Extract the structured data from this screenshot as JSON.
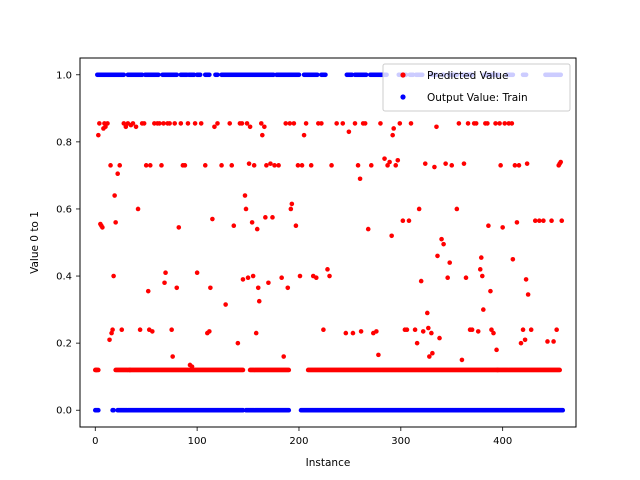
{
  "chart_data": {
    "type": "scatter",
    "title": "",
    "xlabel": "Instance",
    "ylabel": "Value 0 to 1",
    "xlim": [
      -15,
      472
    ],
    "ylim": [
      -0.05,
      1.05
    ],
    "xticks": [
      "0",
      "100",
      "200",
      "300",
      "400"
    ],
    "yticks": [
      "0.0",
      "0.2",
      "0.4",
      "0.6",
      "0.8",
      "1.0"
    ],
    "grid": false,
    "legend_position": "top-right",
    "series": [
      {
        "name": "Predicted Value",
        "color": "#ff0000",
        "points": [
          [
            1,
            0.12
          ],
          [
            3,
            0.82
          ],
          [
            4,
            0.855
          ],
          [
            5,
            0.555
          ],
          [
            6,
            0.55
          ],
          [
            7,
            0.545
          ],
          [
            8,
            0.84
          ],
          [
            9,
            0.855
          ],
          [
            10,
            0.845
          ],
          [
            12,
            0.855
          ],
          [
            14,
            0.21
          ],
          [
            15,
            0.73
          ],
          [
            16,
            0.23
          ],
          [
            17,
            0.24
          ],
          [
            18,
            0.4
          ],
          [
            19,
            0.64
          ],
          [
            20,
            0.56
          ],
          [
            22,
            0.705
          ],
          [
            24,
            0.73
          ],
          [
            26,
            0.24
          ],
          [
            28,
            0.855
          ],
          [
            30,
            0.845
          ],
          [
            32,
            0.855
          ],
          [
            34,
            0.12
          ],
          [
            35,
            0.85
          ],
          [
            37,
            0.855
          ],
          [
            40,
            0.845
          ],
          [
            42,
            0.6
          ],
          [
            44,
            0.24
          ],
          [
            46,
            0.855
          ],
          [
            48,
            0.855
          ],
          [
            50,
            0.73
          ],
          [
            52,
            0.355
          ],
          [
            53,
            0.24
          ],
          [
            54,
            0.73
          ],
          [
            56,
            0.235
          ],
          [
            58,
            0.855
          ],
          [
            61,
            0.855
          ],
          [
            63,
            0.855
          ],
          [
            65,
            0.73
          ],
          [
            67,
            0.855
          ],
          [
            68,
            0.38
          ],
          [
            69,
            0.41
          ],
          [
            71,
            0.855
          ],
          [
            73,
            0.855
          ],
          [
            75,
            0.24
          ],
          [
            76,
            0.16
          ],
          [
            78,
            0.855
          ],
          [
            80,
            0.365
          ],
          [
            82,
            0.545
          ],
          [
            84,
            0.855
          ],
          [
            86,
            0.73
          ],
          [
            88,
            0.73
          ],
          [
            91,
            0.855
          ],
          [
            93,
            0.135
          ],
          [
            95,
            0.13
          ],
          [
            98,
            0.855
          ],
          [
            100,
            0.41
          ],
          [
            104,
            0.855
          ],
          [
            108,
            0.73
          ],
          [
            110,
            0.23
          ],
          [
            112,
            0.235
          ],
          [
            113,
            0.365
          ],
          [
            115,
            0.57
          ],
          [
            117,
            0.845
          ],
          [
            120,
            0.855
          ],
          [
            124,
            0.73
          ],
          [
            128,
            0.315
          ],
          [
            132,
            0.855
          ],
          [
            134,
            0.73
          ],
          [
            136,
            0.55
          ],
          [
            140,
            0.2
          ],
          [
            142,
            0.855
          ],
          [
            144,
            0.855
          ],
          [
            145,
            0.39
          ],
          [
            147,
            0.64
          ],
          [
            148,
            0.6
          ],
          [
            149,
            0.855
          ],
          [
            150,
            0.395
          ],
          [
            151,
            0.735
          ],
          [
            152,
            0.845
          ],
          [
            154,
            0.56
          ],
          [
            155,
            0.4
          ],
          [
            156,
            0.73
          ],
          [
            158,
            0.23
          ],
          [
            159,
            0.54
          ],
          [
            160,
            0.365
          ],
          [
            161,
            0.325
          ],
          [
            163,
            0.855
          ],
          [
            164,
            0.82
          ],
          [
            166,
            0.845
          ],
          [
            167,
            0.575
          ],
          [
            168,
            0.73
          ],
          [
            170,
            0.38
          ],
          [
            172,
            0.735
          ],
          [
            174,
            0.575
          ],
          [
            176,
            0.73
          ],
          [
            180,
            0.73
          ],
          [
            183,
            0.395
          ],
          [
            185,
            0.16
          ],
          [
            187,
            0.855
          ],
          [
            189,
            0.365
          ],
          [
            191,
            0.855
          ],
          [
            192,
            0.6
          ],
          [
            193,
            0.615
          ],
          [
            195,
            0.855
          ],
          [
            197,
            0.55
          ],
          [
            199,
            0.73
          ],
          [
            201,
            0.4
          ],
          [
            203,
            0.73
          ],
          [
            205,
            0.82
          ],
          [
            207,
            0.855
          ],
          [
            212,
            0.73
          ],
          [
            214,
            0.4
          ],
          [
            217,
            0.395
          ],
          [
            219,
            0.855
          ],
          [
            222,
            0.855
          ],
          [
            224,
            0.24
          ],
          [
            228,
            0.42
          ],
          [
            230,
            0.4
          ],
          [
            232,
            0.73
          ],
          [
            237,
            0.855
          ],
          [
            243,
            0.855
          ],
          [
            246,
            0.23
          ],
          [
            249,
            0.83
          ],
          [
            253,
            0.23
          ],
          [
            255,
            0.855
          ],
          [
            258,
            0.73
          ],
          [
            260,
            0.69
          ],
          [
            261,
            0.235
          ],
          [
            263,
            0.855
          ],
          [
            265,
            0.855
          ],
          [
            268,
            0.54
          ],
          [
            271,
            0.73
          ],
          [
            273,
            0.23
          ],
          [
            276,
            0.235
          ],
          [
            278,
            0.165
          ],
          [
            280,
            0.855
          ],
          [
            284,
            0.75
          ],
          [
            287,
            0.73
          ],
          [
            289,
            0.74
          ],
          [
            291,
            0.52
          ],
          [
            292,
            0.82
          ],
          [
            293,
            0.84
          ],
          [
            295,
            0.73
          ],
          [
            297,
            0.745
          ],
          [
            299,
            0.855
          ],
          [
            302,
            0.565
          ],
          [
            304,
            0.24
          ],
          [
            306,
            0.24
          ],
          [
            308,
            0.565
          ],
          [
            310,
            0.855
          ],
          [
            314,
            0.24
          ],
          [
            316,
            0.2
          ],
          [
            318,
            0.6
          ],
          [
            320,
            0.385
          ],
          [
            322,
            0.235
          ],
          [
            324,
            0.735
          ],
          [
            326,
            0.29
          ],
          [
            327,
            0.245
          ],
          [
            328,
            0.16
          ],
          [
            330,
            0.23
          ],
          [
            331,
            0.17
          ],
          [
            333,
            0.725
          ],
          [
            335,
            0.845
          ],
          [
            336,
            0.46
          ],
          [
            338,
            0.215
          ],
          [
            340,
            0.51
          ],
          [
            342,
            0.495
          ],
          [
            344,
            0.735
          ],
          [
            346,
            0.395
          ],
          [
            348,
            0.44
          ],
          [
            350,
            0.73
          ],
          [
            355,
            0.6
          ],
          [
            357,
            0.855
          ],
          [
            360,
            0.15
          ],
          [
            362,
            0.735
          ],
          [
            364,
            0.395
          ],
          [
            366,
            0.855
          ],
          [
            368,
            0.24
          ],
          [
            370,
            0.24
          ],
          [
            372,
            0.855
          ],
          [
            374,
            0.855
          ],
          [
            376,
            0.235
          ],
          [
            378,
            0.42
          ],
          [
            379,
            0.455
          ],
          [
            380,
            0.4
          ],
          [
            381,
            0.3
          ],
          [
            383,
            0.855
          ],
          [
            385,
            0.855
          ],
          [
            386,
            0.55
          ],
          [
            388,
            0.355
          ],
          [
            389,
            0.24
          ],
          [
            391,
            0.23
          ],
          [
            393,
            0.855
          ],
          [
            394,
            0.18
          ],
          [
            395,
            0.12
          ],
          [
            397,
            0.855
          ],
          [
            398,
            0.73
          ],
          [
            400,
            0.545
          ],
          [
            402,
            0.855
          ],
          [
            406,
            0.855
          ],
          [
            409,
            0.855
          ],
          [
            410,
            0.45
          ],
          [
            412,
            0.73
          ],
          [
            414,
            0.56
          ],
          [
            416,
            0.73
          ],
          [
            418,
            0.2
          ],
          [
            420,
            0.24
          ],
          [
            422,
            0.21
          ],
          [
            423,
            0.39
          ],
          [
            424,
            0.735
          ],
          [
            425,
            0.345
          ],
          [
            428,
            0.24
          ],
          [
            432,
            0.565
          ],
          [
            436,
            0.565
          ],
          [
            440,
            0.565
          ],
          [
            444,
            0.205
          ],
          [
            448,
            0.565
          ],
          [
            450,
            0.205
          ],
          [
            453,
            0.24
          ],
          [
            455,
            0.73
          ],
          [
            456,
            0.735
          ],
          [
            457,
            0.74
          ],
          [
            458,
            0.565
          ]
        ],
        "baseline_value": 0.12,
        "baseline_segments": [
          [
            0,
            3
          ],
          [
            20,
            145
          ],
          [
            152,
            190
          ],
          [
            209,
            456
          ]
        ]
      },
      {
        "name": "Output Value: Train",
        "color": "#0000ff",
        "value_high": 1.0,
        "value_low": 0.0,
        "high_segments": [
          [
            2,
            28
          ],
          [
            32,
            46
          ],
          [
            49,
            62
          ],
          [
            66,
            80
          ],
          [
            84,
            90
          ],
          [
            92,
            97
          ],
          [
            100,
            103
          ],
          [
            108,
            112
          ],
          [
            118,
            120
          ],
          [
            124,
            175
          ],
          [
            178,
            200
          ],
          [
            205,
            218
          ],
          [
            222,
            226
          ],
          [
            247,
            252
          ],
          [
            255,
            266
          ],
          [
            270,
            286
          ],
          [
            298,
            305
          ],
          [
            309,
            312
          ],
          [
            315,
            321
          ],
          [
            330,
            335
          ],
          [
            341,
            342
          ],
          [
            347,
            355
          ],
          [
            360,
            370
          ],
          [
            382,
            396
          ],
          [
            404,
            410
          ],
          [
            420,
            423
          ],
          [
            442,
            457
          ]
        ],
        "low_segments": [
          [
            0,
            3
          ],
          [
            17,
            18
          ],
          [
            22,
            145
          ],
          [
            148,
            190
          ],
          [
            202,
            459
          ]
        ]
      }
    ]
  }
}
